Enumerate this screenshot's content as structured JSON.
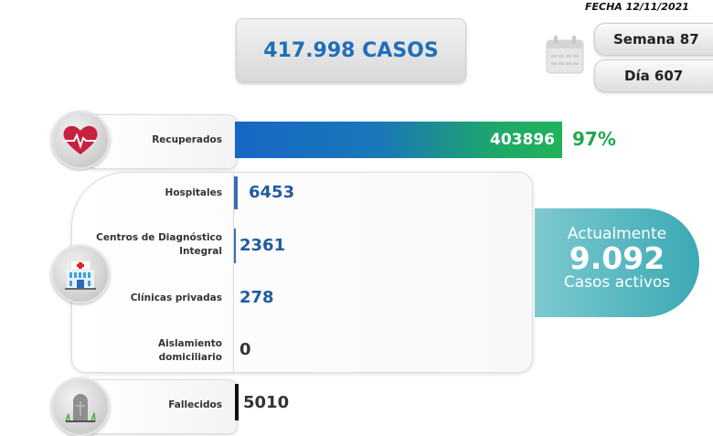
{
  "header": {
    "fecha": "FECHA 12/11/2021",
    "total_casos": "417.998 CASOS",
    "semana": "Semana 87",
    "dia": "Día 607"
  },
  "recuperados": {
    "label": "Recuperados",
    "value": "403896",
    "percent": "97%"
  },
  "hospitalizacion": [
    {
      "label": "Hospitales",
      "value": "6453"
    },
    {
      "label": "Centros de Diagnóstico Integral",
      "value": "2361"
    },
    {
      "label": "Clínicas privadas",
      "value": "278"
    },
    {
      "label": "Aislamiento domiciliario",
      "value": "0"
    }
  ],
  "activos": {
    "line1": "Actualmente",
    "value": "9.092",
    "line2": "Casos activos"
  },
  "fallecidos": {
    "label": "Fallecidos",
    "value": "5010"
  },
  "colors": {
    "blue": "#1f6fb8",
    "green": "#22a84f",
    "teal": "#3aa9b4"
  }
}
